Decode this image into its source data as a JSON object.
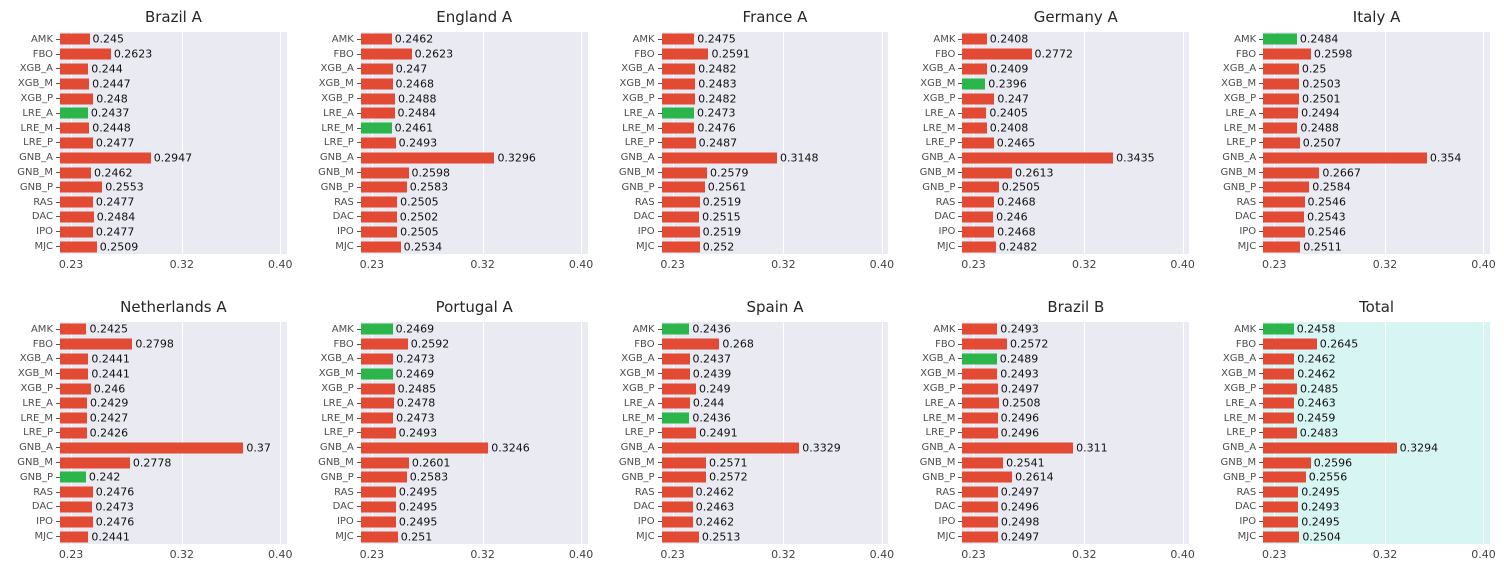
{
  "figure": {
    "background": "#ffffff",
    "panel_background": "#eaeaf2",
    "highlight_panel_background": "#d7f5f2",
    "bar_color": "#e24a33",
    "best_bar_color": "#2bb54a",
    "grid_color": "#ffffff",
    "title_color": "#262626",
    "label_color": "#4d4d4d",
    "value_color": "#111111"
  },
  "chart_data": [
    {
      "type": "bar",
      "orientation": "horizontal",
      "title": "Brazil A",
      "categories": [
        "AMK",
        "FBO",
        "XGB_A",
        "XGB_M",
        "XGB_P",
        "LRE_A",
        "LRE_M",
        "LRE_P",
        "GNB_A",
        "GNB_M",
        "GNB_P",
        "RAS",
        "DAC",
        "IPO",
        "MJC"
      ],
      "values": [
        0.245,
        0.2623,
        0.244,
        0.2447,
        0.248,
        0.2437,
        0.2448,
        0.2477,
        0.2947,
        0.2462,
        0.2553,
        0.2477,
        0.2484,
        0.2477,
        0.2509
      ],
      "best_indices": [
        5
      ],
      "xlim": [
        0.221,
        0.4053
      ],
      "xtick_values": [
        0.23,
        0.32,
        0.4
      ],
      "xtick_labels": [
        "0.23",
        "0.32",
        "0.40"
      ],
      "panel": "default"
    },
    {
      "type": "bar",
      "orientation": "horizontal",
      "title": "England A",
      "categories": [
        "AMK",
        "FBO",
        "XGB_A",
        "XGB_M",
        "XGB_P",
        "LRE_A",
        "LRE_M",
        "LRE_P",
        "GNB_A",
        "GNB_M",
        "GNB_P",
        "RAS",
        "DAC",
        "IPO",
        "MJC"
      ],
      "values": [
        0.2462,
        0.2623,
        0.247,
        0.2468,
        0.2488,
        0.2484,
        0.2461,
        0.2493,
        0.3296,
        0.2598,
        0.2583,
        0.2505,
        0.2502,
        0.2505,
        0.2534
      ],
      "best_indices": [
        6
      ],
      "xlim": [
        0.221,
        0.4053
      ],
      "xtick_values": [
        0.23,
        0.32,
        0.4
      ],
      "xtick_labels": [
        "0.23",
        "0.32",
        "0.40"
      ],
      "panel": "default"
    },
    {
      "type": "bar",
      "orientation": "horizontal",
      "title": "France A",
      "categories": [
        "AMK",
        "FBO",
        "XGB_A",
        "XGB_M",
        "XGB_P",
        "LRE_A",
        "LRE_M",
        "LRE_P",
        "GNB_A",
        "GNB_M",
        "GNB_P",
        "RAS",
        "DAC",
        "IPO",
        "MJC"
      ],
      "values": [
        0.2475,
        0.2591,
        0.2482,
        0.2483,
        0.2482,
        0.2473,
        0.2476,
        0.2487,
        0.3148,
        0.2579,
        0.2561,
        0.2519,
        0.2515,
        0.2519,
        0.252
      ],
      "best_indices": [
        5
      ],
      "xlim": [
        0.221,
        0.4053
      ],
      "xtick_values": [
        0.23,
        0.32,
        0.4
      ],
      "xtick_labels": [
        "0.23",
        "0.32",
        "0.40"
      ],
      "panel": "default"
    },
    {
      "type": "bar",
      "orientation": "horizontal",
      "title": "Germany A",
      "categories": [
        "AMK",
        "FBO",
        "XGB_A",
        "XGB_M",
        "XGB_P",
        "LRE_A",
        "LRE_M",
        "LRE_P",
        "GNB_A",
        "GNB_M",
        "GNB_P",
        "RAS",
        "DAC",
        "IPO",
        "MJC"
      ],
      "values": [
        0.2408,
        0.2772,
        0.2409,
        0.2396,
        0.247,
        0.2405,
        0.2408,
        0.2465,
        0.3435,
        0.2613,
        0.2505,
        0.2468,
        0.246,
        0.2468,
        0.2482
      ],
      "best_indices": [
        3
      ],
      "xlim": [
        0.221,
        0.4053
      ],
      "xtick_values": [
        0.23,
        0.32,
        0.4
      ],
      "xtick_labels": [
        "0.23",
        "0.32",
        "0.40"
      ],
      "panel": "default"
    },
    {
      "type": "bar",
      "orientation": "horizontal",
      "title": "Italy A",
      "categories": [
        "AMK",
        "FBO",
        "XGB_A",
        "XGB_M",
        "XGB_P",
        "LRE_A",
        "LRE_M",
        "LRE_P",
        "GNB_A",
        "GNB_M",
        "GNB_P",
        "RAS",
        "DAC",
        "IPO",
        "MJC"
      ],
      "values": [
        0.2484,
        0.2598,
        0.25,
        0.2503,
        0.2501,
        0.2494,
        0.2488,
        0.2507,
        0.354,
        0.2667,
        0.2584,
        0.2546,
        0.2543,
        0.2546,
        0.2511
      ],
      "best_indices": [
        0
      ],
      "xlim": [
        0.221,
        0.4053
      ],
      "xtick_values": [
        0.23,
        0.32,
        0.4
      ],
      "xtick_labels": [
        "0.23",
        "0.32",
        "0.40"
      ],
      "panel": "default"
    },
    {
      "type": "bar",
      "orientation": "horizontal",
      "title": "Netherlands A",
      "categories": [
        "AMK",
        "FBO",
        "XGB_A",
        "XGB_M",
        "XGB_P",
        "LRE_A",
        "LRE_M",
        "LRE_P",
        "GNB_A",
        "GNB_M",
        "GNB_P",
        "RAS",
        "DAC",
        "IPO",
        "MJC"
      ],
      "values": [
        0.2425,
        0.2798,
        0.2441,
        0.2441,
        0.246,
        0.2429,
        0.2427,
        0.2426,
        0.37,
        0.2778,
        0.242,
        0.2476,
        0.2473,
        0.2476,
        0.2441
      ],
      "best_indices": [
        10
      ],
      "xlim": [
        0.221,
        0.4053
      ],
      "xtick_values": [
        0.23,
        0.32,
        0.4
      ],
      "xtick_labels": [
        "0.23",
        "0.32",
        "0.40"
      ],
      "panel": "default"
    },
    {
      "type": "bar",
      "orientation": "horizontal",
      "title": "Portugal A",
      "categories": [
        "AMK",
        "FBO",
        "XGB_A",
        "XGB_M",
        "XGB_P",
        "LRE_A",
        "LRE_M",
        "LRE_P",
        "GNB_A",
        "GNB_M",
        "GNB_P",
        "RAS",
        "DAC",
        "IPO",
        "MJC"
      ],
      "values": [
        0.2469,
        0.2592,
        0.2473,
        0.2469,
        0.2485,
        0.2478,
        0.2473,
        0.2493,
        0.3246,
        0.2601,
        0.2583,
        0.2495,
        0.2495,
        0.2495,
        0.251
      ],
      "best_indices": [
        0,
        3
      ],
      "xlim": [
        0.221,
        0.4053
      ],
      "xtick_values": [
        0.23,
        0.32,
        0.4
      ],
      "xtick_labels": [
        "0.23",
        "0.32",
        "0.40"
      ],
      "panel": "default"
    },
    {
      "type": "bar",
      "orientation": "horizontal",
      "title": "Spain A",
      "categories": [
        "AMK",
        "FBO",
        "XGB_A",
        "XGB_M",
        "XGB_P",
        "LRE_A",
        "LRE_M",
        "LRE_P",
        "GNB_A",
        "GNB_M",
        "GNB_P",
        "RAS",
        "DAC",
        "IPO",
        "MJC"
      ],
      "values": [
        0.2436,
        0.268,
        0.2437,
        0.2439,
        0.249,
        0.244,
        0.2436,
        0.2491,
        0.3329,
        0.2571,
        0.2572,
        0.2462,
        0.2463,
        0.2462,
        0.2513
      ],
      "best_indices": [
        0,
        6
      ],
      "xlim": [
        0.221,
        0.4053
      ],
      "xtick_values": [
        0.23,
        0.32,
        0.4
      ],
      "xtick_labels": [
        "0.23",
        "0.32",
        "0.40"
      ],
      "panel": "default"
    },
    {
      "type": "bar",
      "orientation": "horizontal",
      "title": "Brazil B",
      "categories": [
        "AMK",
        "FBO",
        "XGB_A",
        "XGB_M",
        "XGB_P",
        "LRE_A",
        "LRE_M",
        "LRE_P",
        "GNB_A",
        "GNB_M",
        "GNB_P",
        "RAS",
        "DAC",
        "IPO",
        "MJC"
      ],
      "values": [
        0.2493,
        0.2572,
        0.2489,
        0.2493,
        0.2497,
        0.2508,
        0.2496,
        0.2496,
        0.311,
        0.2541,
        0.2614,
        0.2497,
        0.2496,
        0.2498,
        0.2497
      ],
      "best_indices": [
        2
      ],
      "xlim": [
        0.221,
        0.4053
      ],
      "xtick_values": [
        0.23,
        0.32,
        0.4
      ],
      "xtick_labels": [
        "0.23",
        "0.32",
        "0.40"
      ],
      "panel": "default"
    },
    {
      "type": "bar",
      "orientation": "horizontal",
      "title": "Total",
      "categories": [
        "AMK",
        "FBO",
        "XGB_A",
        "XGB_M",
        "XGB_P",
        "LRE_A",
        "LRE_M",
        "LRE_P",
        "GNB_A",
        "GNB_M",
        "GNB_P",
        "RAS",
        "DAC",
        "IPO",
        "MJC"
      ],
      "values": [
        0.2458,
        0.2645,
        0.2462,
        0.2462,
        0.2485,
        0.2463,
        0.2459,
        0.2483,
        0.3294,
        0.2596,
        0.2556,
        0.2495,
        0.2493,
        0.2495,
        0.2504
      ],
      "best_indices": [
        0
      ],
      "xlim": [
        0.221,
        0.4053
      ],
      "xtick_values": [
        0.23,
        0.32,
        0.4
      ],
      "xtick_labels": [
        "0.23",
        "0.32",
        "0.40"
      ],
      "panel": "highlight"
    }
  ]
}
